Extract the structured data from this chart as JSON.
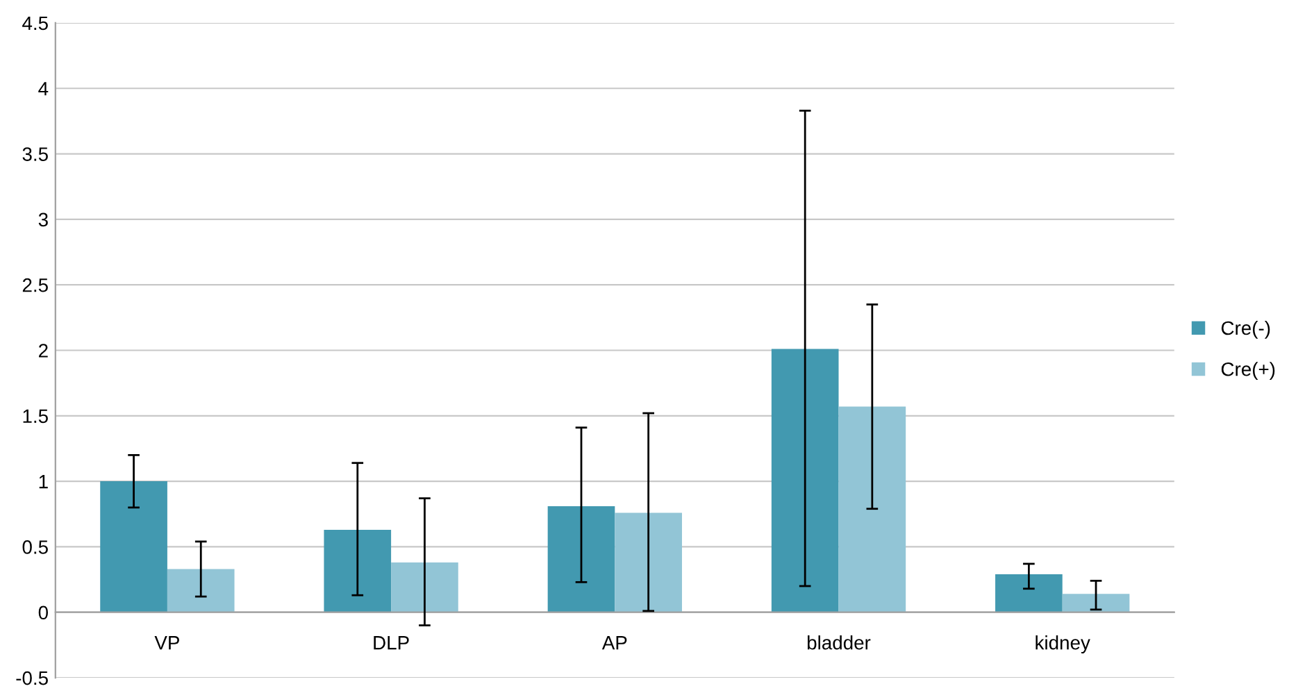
{
  "chart_data": {
    "type": "bar",
    "categories": [
      "VP",
      "DLP",
      "AP",
      "bladder",
      "kidney"
    ],
    "series": [
      {
        "name": "Cre(-)",
        "color": "#4299b0",
        "values": [
          1.0,
          0.63,
          0.81,
          2.01,
          0.29
        ],
        "errors": [
          [
            0.8,
            1.2
          ],
          [
            0.13,
            1.14
          ],
          [
            0.23,
            1.41
          ],
          [
            0.2,
            3.83
          ],
          [
            0.18,
            0.37
          ]
        ]
      },
      {
        "name": "Cre(+)",
        "color": "#92c5d6",
        "values": [
          0.33,
          0.38,
          0.76,
          1.57,
          0.14
        ],
        "errors": [
          [
            0.12,
            0.54
          ],
          [
            -0.1,
            0.87
          ],
          [
            0.01,
            1.52
          ],
          [
            0.79,
            2.35
          ],
          [
            0.02,
            0.24
          ]
        ]
      }
    ],
    "ylim": [
      -0.5,
      4.5
    ],
    "yticks": [
      -0.5,
      0,
      0.5,
      1,
      1.5,
      2,
      2.5,
      3,
      3.5,
      4,
      4.5
    ],
    "grid": "y",
    "legend": "right"
  }
}
